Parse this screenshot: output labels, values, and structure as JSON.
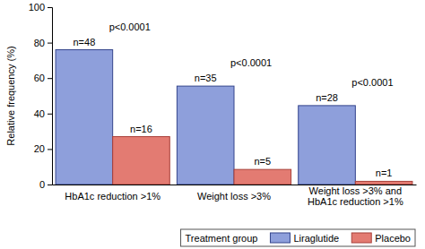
{
  "chart_data": {
    "type": "bar",
    "y_label": "Relative frequency (%)",
    "categories": [
      "HbA1c reduction >1%",
      "Weight loss >3%",
      "Weight loss >3% and HbA1c reduction >1%"
    ],
    "series": [
      {
        "name": "Liraglutide",
        "color": "#8e9fdb",
        "values": [
          76,
          55.5,
          44.5
        ],
        "n_labels": [
          "n=48",
          "n=35",
          "n=28"
        ]
      },
      {
        "name": "Placebo",
        "color": "#e37b72",
        "values": [
          27,
          8.5,
          1.8
        ],
        "n_labels": [
          "n=16",
          "n=5",
          "n=1"
        ]
      }
    ],
    "p_labels": [
      "p<0.0001",
      "p<0.0001",
      "p<0.0001"
    ],
    "ylim": [
      0,
      100
    ],
    "yticks": [
      0,
      20,
      40,
      60,
      80,
      100
    ],
    "grid": false,
    "legend": "bottom",
    "legend_title": "Treatment group"
  }
}
